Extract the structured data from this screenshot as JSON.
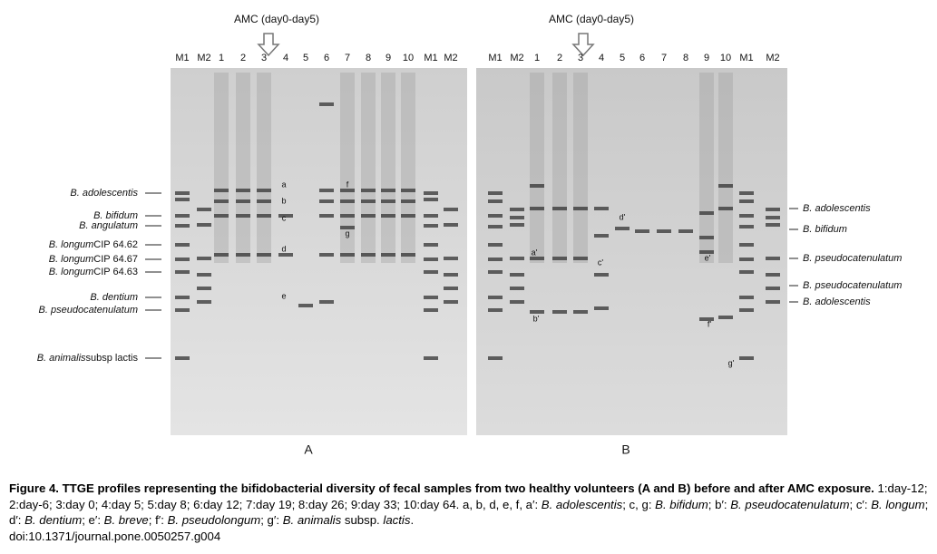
{
  "panels": [
    {
      "letter": "A",
      "amc_label": "AMC (day0-day5)",
      "lanes": [
        "M1",
        "M2",
        "1",
        "2",
        "3",
        "4",
        "5",
        "6",
        "7",
        "8",
        "9",
        "10",
        "M1",
        "M2"
      ],
      "band_letters": [
        "a",
        "b",
        "c",
        "d",
        "e",
        "f",
        "g"
      ],
      "side_labels": [
        {
          "species": "B. adolescentis",
          "strain": ""
        },
        {
          "species": "B. bifidum",
          "strain": ""
        },
        {
          "species": "B. angulatum",
          "strain": ""
        },
        {
          "species": "B. longum",
          "strain": "CIP 64.62"
        },
        {
          "species": "B. longum",
          "strain": "CIP 64.67"
        },
        {
          "species": "B. longum",
          "strain": "CIP 64.63"
        },
        {
          "species": "B. dentium",
          "strain": ""
        },
        {
          "species": "B. pseudocatenulatum",
          "strain": ""
        },
        {
          "species": "B. animalis",
          "strain": "subsp lactis"
        }
      ]
    },
    {
      "letter": "B",
      "amc_label": "AMC (day0-day5)",
      "lanes": [
        "M1",
        "M2",
        "1",
        "2",
        "3",
        "4",
        "5",
        "6",
        "7",
        "8",
        "9",
        "10",
        "M1",
        "M2"
      ],
      "band_letters": [
        "a'",
        "b'",
        "c'",
        "d'",
        "e'",
        "f'",
        "g'"
      ],
      "side_labels": [
        {
          "species": "B. adolescentis",
          "strain": ""
        },
        {
          "species": "B. bifidum",
          "strain": ""
        },
        {
          "species": "B. pseudocatenulatum",
          "strain": ""
        },
        {
          "species": "B. pseudocatenulatum",
          "strain": ""
        },
        {
          "species": "B. adolescentis",
          "strain": ""
        }
      ]
    }
  ],
  "caption": {
    "parts": [
      {
        "text": "Figure 4. TTGE profiles representing the bifidobacterial diversity of fecal samples from two healthy volunteers (A and B) before and after AMC exposure.",
        "style": "bold"
      },
      {
        "text": " 1:day-12; 2:day-6; 3:day 0; 4:day 5; 5:day 8; 6:day 12; 7:day 19; 8:day 26; 9:day 33; 10:day 64. a, b, d, e, f, a′: ",
        "style": "normal"
      },
      {
        "text": "B. adolescentis",
        "style": "italic"
      },
      {
        "text": "; c, g: ",
        "style": "normal"
      },
      {
        "text": "B. bifidum",
        "style": "italic"
      },
      {
        "text": "; b′: ",
        "style": "normal"
      },
      {
        "text": "B. pseudocatenulatum",
        "style": "italic"
      },
      {
        "text": "; c′: ",
        "style": "normal"
      },
      {
        "text": "B. longum",
        "style": "italic"
      },
      {
        "text": "; d′: ",
        "style": "normal"
      },
      {
        "text": "B. dentium",
        "style": "italic"
      },
      {
        "text": "; e′: ",
        "style": "normal"
      },
      {
        "text": "B. breve",
        "style": "italic"
      },
      {
        "text": "; f′: ",
        "style": "normal"
      },
      {
        "text": "B. pseudolongum",
        "style": "italic"
      },
      {
        "text": "; g′: ",
        "style": "normal"
      },
      {
        "text": "B. animalis",
        "style": "italic"
      },
      {
        "text": " subsp. ",
        "style": "normal"
      },
      {
        "text": "lactis",
        "style": "italic"
      },
      {
        "text": ".",
        "style": "normal"
      }
    ],
    "doi": "doi:10.1371/journal.pone.0050257.g004"
  }
}
